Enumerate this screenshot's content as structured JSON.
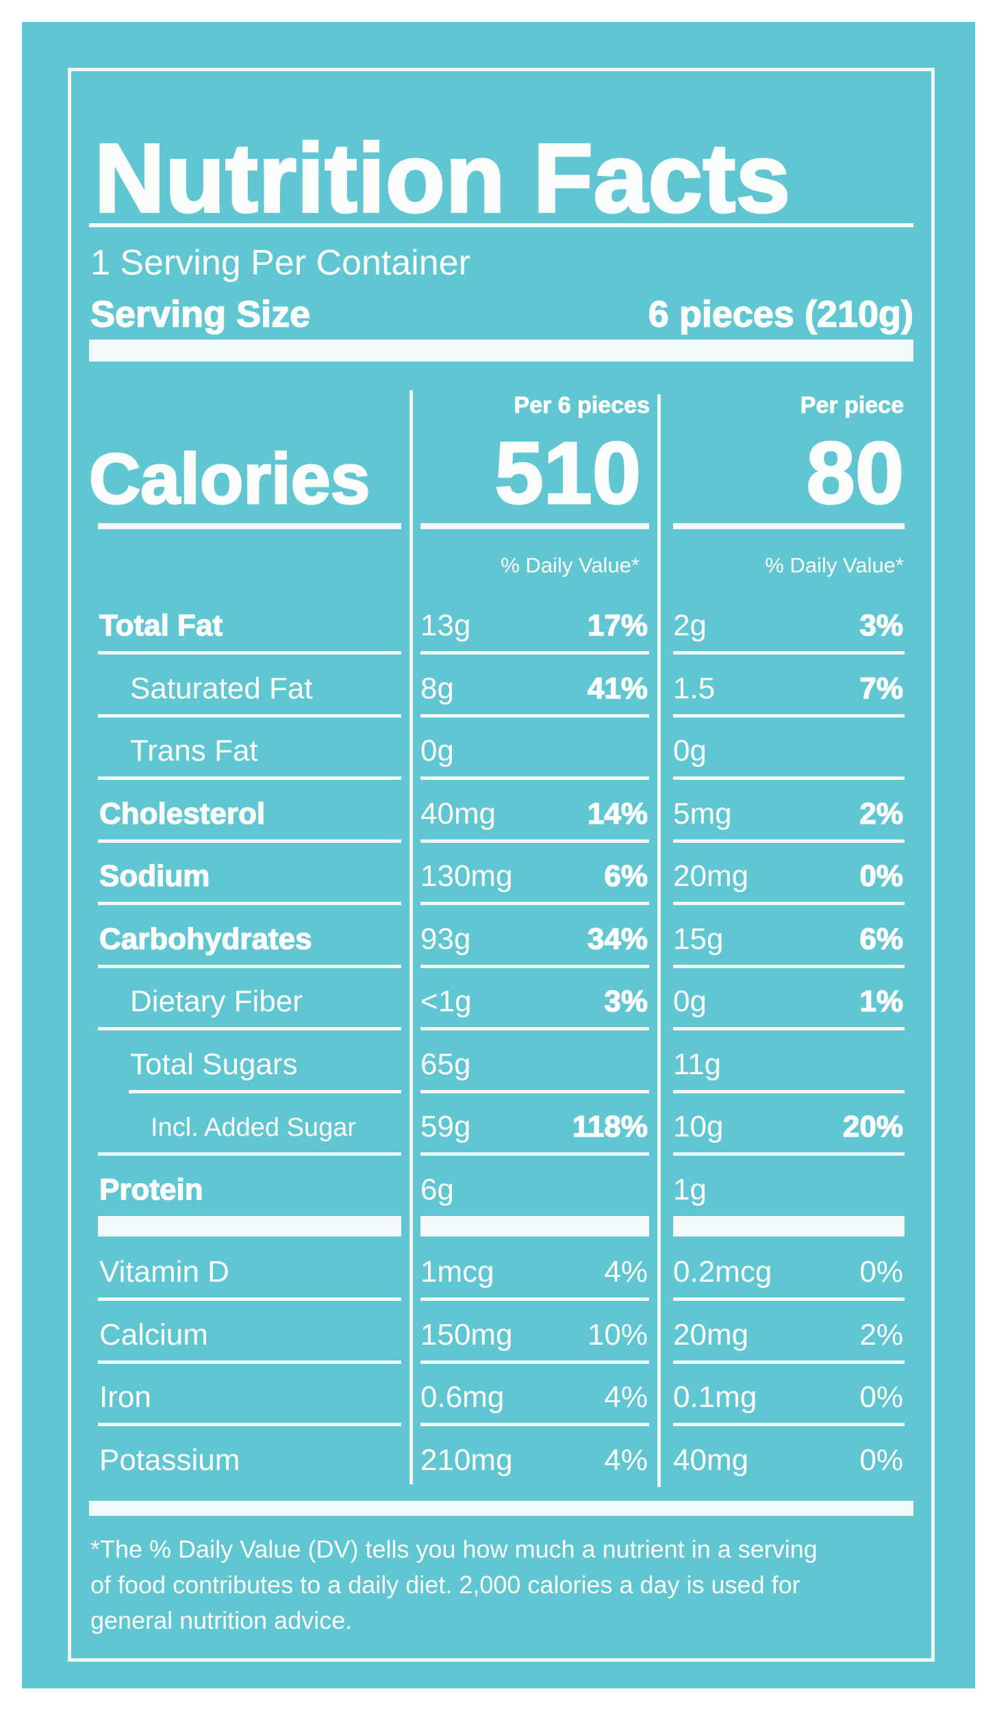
{
  "title": "Nutrition Facts",
  "servings_per_container": "1 Serving Per Container",
  "serving_size": {
    "label": "Serving Size",
    "value": "6 pieces (210g)"
  },
  "columns": [
    {
      "header": "Per 6 pieces",
      "calories": "510",
      "dv_label": "% Daily Value*"
    },
    {
      "header": "Per piece",
      "calories": "80",
      "dv_label": "% Daily Value*"
    }
  ],
  "calories_label": "Calories",
  "nutrients": [
    {
      "label": "Total Fat",
      "bold": true,
      "indent": 0,
      "a": "13g",
      "a_pct": "17%",
      "b": "2g",
      "b_pct": "3%"
    },
    {
      "label": "Saturated Fat",
      "bold": false,
      "indent": 1,
      "a": "8g",
      "a_pct": "41%",
      "b": "1.5",
      "b_pct": "7%"
    },
    {
      "label": "Trans Fat",
      "bold": false,
      "indent": 1,
      "a": "0g",
      "a_pct": "",
      "b": "0g",
      "b_pct": ""
    },
    {
      "label": "Cholesterol",
      "bold": true,
      "indent": 0,
      "a": "40mg",
      "a_pct": "14%",
      "b": "5mg",
      "b_pct": "2%"
    },
    {
      "label": "Sodium",
      "bold": true,
      "indent": 0,
      "a": "130mg",
      "a_pct": "6%",
      "b": "20mg",
      "b_pct": "0%"
    },
    {
      "label": "Carbohydrates",
      "bold": true,
      "indent": 0,
      "a": "93g",
      "a_pct": "34%",
      "b": "15g",
      "b_pct": "6%"
    },
    {
      "label": "Dietary Fiber",
      "bold": false,
      "indent": 1,
      "a": "<1g",
      "a_pct": "3%",
      "b": "0g",
      "b_pct": "1%"
    },
    {
      "label": "Total Sugars",
      "bold": false,
      "indent": 1,
      "a": "65g",
      "a_pct": "",
      "b": "11g",
      "b_pct": ""
    },
    {
      "label": "Incl. Added Sugar",
      "bold": false,
      "indent": 2,
      "a": "59g",
      "a_pct": "118%",
      "b": "10g",
      "b_pct": "20%"
    },
    {
      "label": "Protein",
      "bold": true,
      "indent": 0,
      "a": "6g",
      "a_pct": "",
      "b": "1g",
      "b_pct": ""
    }
  ],
  "vitamins": [
    {
      "label": "Vitamin D",
      "a": "1mcg",
      "a_pct": "4%",
      "b": "0.2mcg",
      "b_pct": "0%"
    },
    {
      "label": "Calcium",
      "a": "150mg",
      "a_pct": "10%",
      "b": "20mg",
      "b_pct": "2%"
    },
    {
      "label": "Iron",
      "a": "0.6mg",
      "a_pct": "4%",
      "b": "0.1mg",
      "b_pct": "0%"
    },
    {
      "label": "Potassium",
      "a": "210mg",
      "a_pct": "4%",
      "b": "40mg",
      "b_pct": "0%"
    }
  ],
  "footnote": [
    "*The % Daily Value (DV) tells you how much a nutrient in a serving",
    "of food contributes to a daily diet. 2,000 calories a day is used for",
    "general nutrition advice."
  ],
  "colors": {
    "background": "#60c6d2",
    "ink": "#fbfdfd"
  }
}
